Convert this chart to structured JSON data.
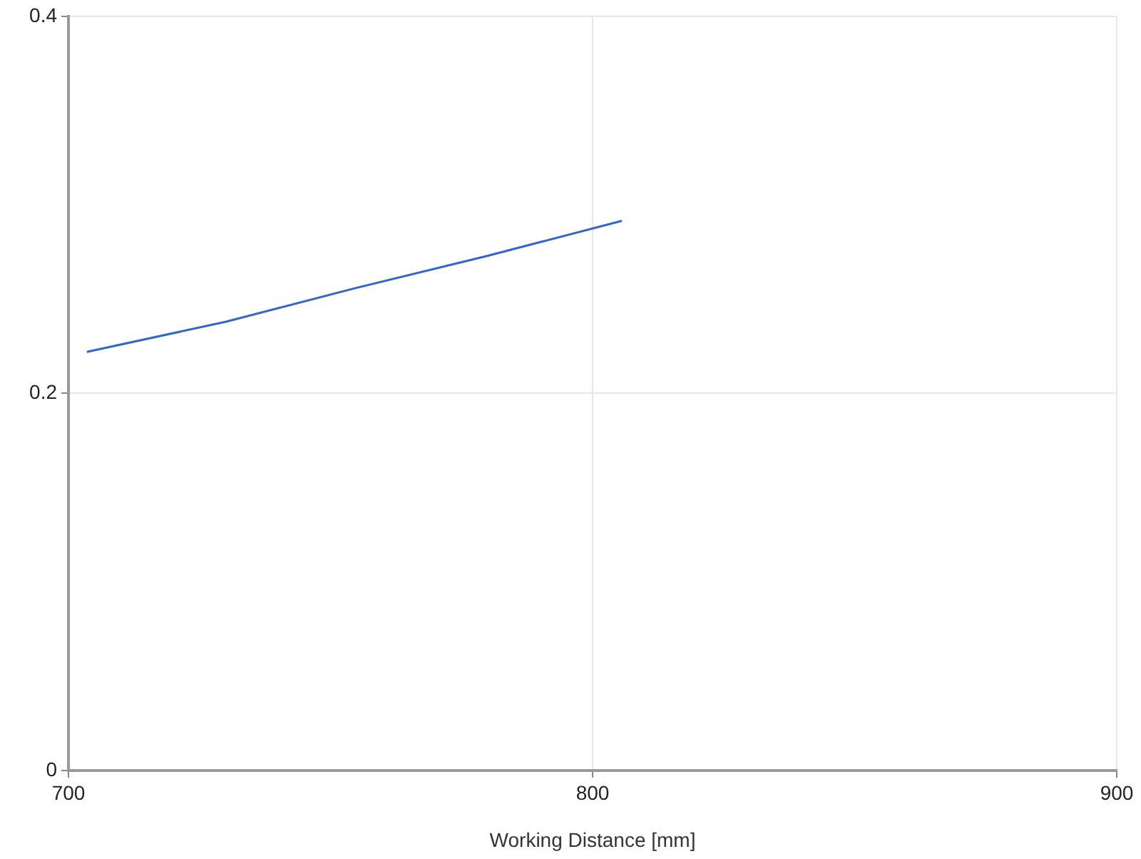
{
  "chart_data": {
    "type": "line",
    "xlabel": "Working Distance [mm]",
    "series": [
      {
        "color": "#3366cc",
        "x": [
          703.5,
          730,
          755,
          780,
          805.6
        ],
        "values": [
          0.222,
          0.238,
          0.256,
          0.273,
          0.2915
        ]
      }
    ],
    "xlim": [
      700,
      900
    ],
    "xticks": [
      700,
      800,
      900
    ],
    "ylim": [
      0,
      0.4
    ],
    "yticks": [
      0,
      0.2,
      0.4
    ],
    "grid": true,
    "legend": false,
    "marker": "none",
    "line_style": "solid"
  }
}
